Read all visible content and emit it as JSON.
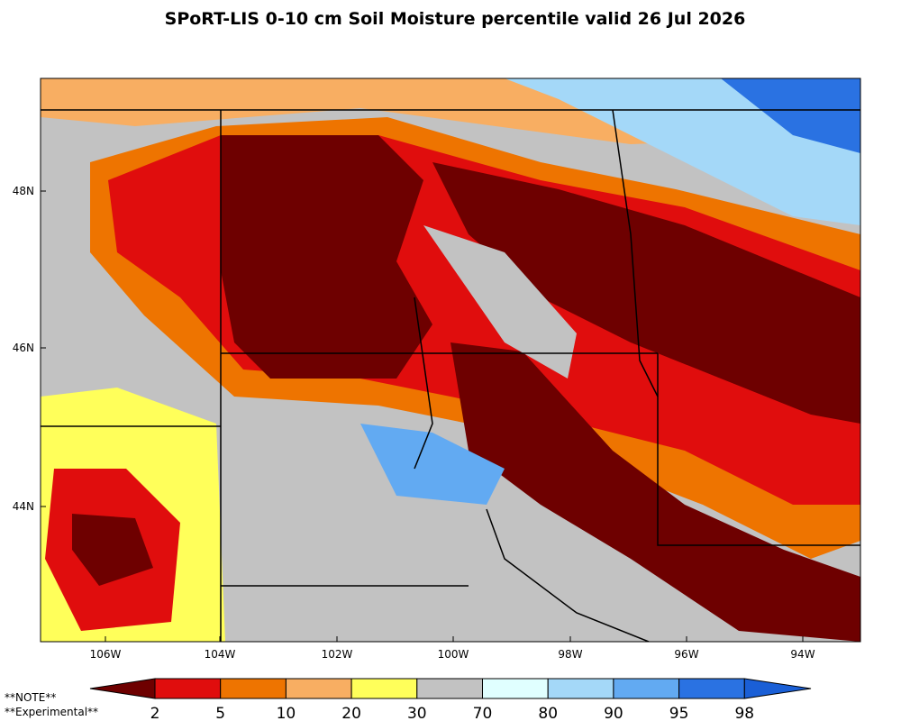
{
  "title": "SPoRT-LIS 0-10 cm Soil Moisture percentile valid 26 Jul 2026",
  "map": {
    "lat_labels": [
      "48N",
      "46N",
      "44N"
    ],
    "lon_labels": [
      "106W",
      "104W",
      "102W",
      "100W",
      "98W",
      "96W",
      "94W"
    ]
  },
  "colorbar": {
    "colors": [
      "#6e0000",
      "#e00d0d",
      "#ee7400",
      "#f8ae62",
      "#ffff5a",
      "#c2c2c2",
      "#e0ffff",
      "#a4d8f8",
      "#62aaf2",
      "#2a72e2",
      "#1a5fd6"
    ],
    "labels": [
      "2",
      "5",
      "10",
      "20",
      "30",
      "70",
      "80",
      "90",
      "95",
      "98"
    ]
  },
  "notes": [
    "**NOTE**",
    "**Experimental**"
  ]
}
